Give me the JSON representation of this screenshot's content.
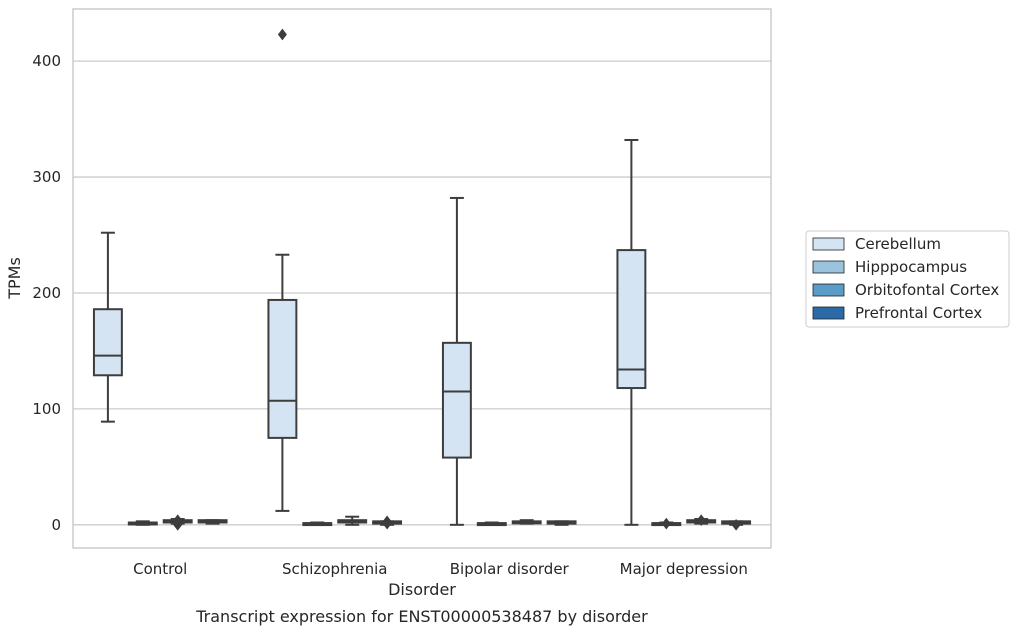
{
  "chart_data": {
    "type": "box",
    "caption": "Transcript expression for ENST00000538487 by disorder",
    "xlabel": "Disorder",
    "ylabel": "TPMs",
    "ylim": [
      -20,
      445
    ],
    "yticks": [
      0,
      100,
      200,
      300,
      400
    ],
    "categories": [
      "Control",
      "Schizophrenia",
      "Bipolar disorder",
      "Major depression"
    ],
    "legend_position": "right",
    "grid": "horizontal",
    "series": [
      {
        "name": "Cerebellum",
        "color": "#d4e4f2",
        "boxes": [
          {
            "whislo": 89,
            "q1": 129,
            "med": 146,
            "q3": 186,
            "whishi": 252,
            "fliers": []
          },
          {
            "whislo": 12,
            "q1": 75,
            "med": 107,
            "q3": 194,
            "whishi": 233,
            "fliers": [
              423
            ]
          },
          {
            "whislo": 0,
            "q1": 58,
            "med": 115,
            "q3": 157,
            "whishi": 282,
            "fliers": []
          },
          {
            "whislo": 0,
            "q1": 118,
            "med": 134,
            "q3": 237,
            "whishi": 332,
            "fliers": []
          }
        ]
      },
      {
        "name": "Hipppocampus",
        "color": "#9ac3dd",
        "boxes": [
          {
            "whislo": 0,
            "q1": 0.5,
            "med": 1,
            "q3": 2,
            "whishi": 3,
            "fliers": []
          },
          {
            "whislo": 0,
            "q1": 0.5,
            "med": 1,
            "q3": 1.5,
            "whishi": 2,
            "fliers": []
          },
          {
            "whislo": 0,
            "q1": 0.5,
            "med": 1,
            "q3": 1.5,
            "whishi": 2,
            "fliers": []
          },
          {
            "whislo": 0,
            "q1": 0.5,
            "med": 1,
            "q3": 1.5,
            "whishi": 2,
            "fliers": [
              1
            ]
          }
        ]
      },
      {
        "name": "Orbitofontal Cortex",
        "color": "#5b9bc8",
        "boxes": [
          {
            "whislo": 1,
            "q1": 2,
            "med": 3,
            "q3": 4,
            "whishi": 5,
            "fliers": [
              0,
              4
            ]
          },
          {
            "whislo": 0,
            "q1": 2,
            "med": 3,
            "q3": 4,
            "whishi": 7,
            "fliers": []
          },
          {
            "whislo": 1,
            "q1": 2,
            "med": 2.5,
            "q3": 3,
            "whishi": 4,
            "fliers": []
          },
          {
            "whislo": 1,
            "q1": 2,
            "med": 3,
            "q3": 4,
            "whishi": 5,
            "fliers": [
              4
            ]
          }
        ]
      },
      {
        "name": "Prefrontal Cortex",
        "color": "#2a6aa8",
        "boxes": [
          {
            "whislo": 1,
            "q1": 2,
            "med": 3,
            "q3": 4,
            "whishi": 4,
            "fliers": []
          },
          {
            "whislo": 0,
            "q1": 1,
            "med": 2,
            "q3": 3,
            "whishi": 3,
            "fliers": [
              1,
              3
            ]
          },
          {
            "whislo": 0,
            "q1": 1,
            "med": 2,
            "q3": 3,
            "whishi": 3,
            "fliers": []
          },
          {
            "whislo": 0,
            "q1": 1,
            "med": 2,
            "q3": 3,
            "whishi": 3,
            "fliers": [
              0
            ]
          }
        ]
      }
    ]
  }
}
